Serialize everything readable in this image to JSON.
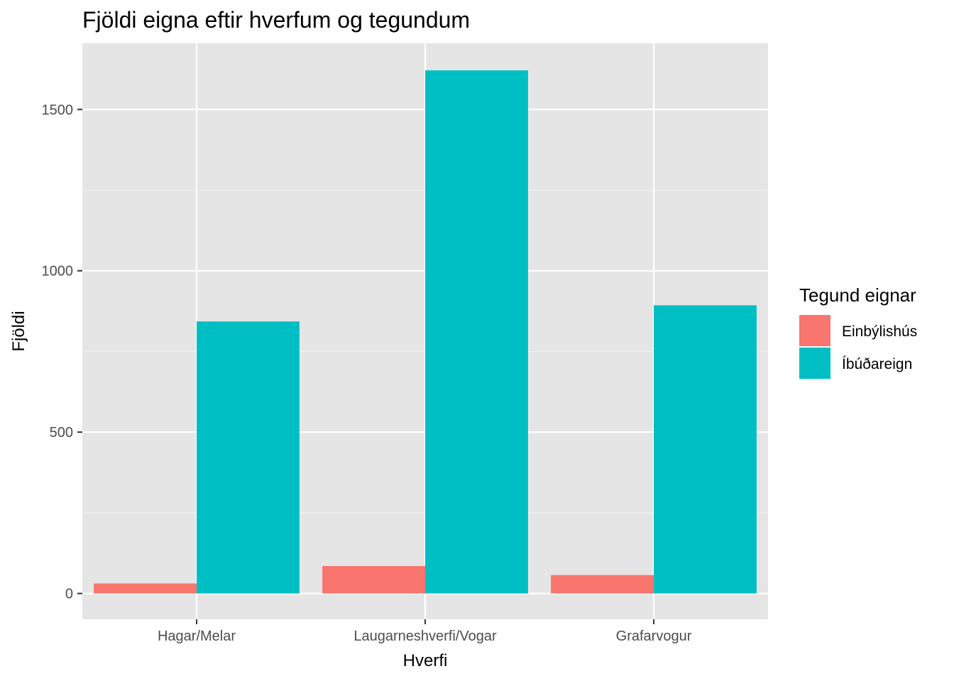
{
  "chart_data": {
    "type": "bar",
    "title": "Fjöldi eigna eftir hverfum og tegundum",
    "xlabel": "Hverfi",
    "ylabel": "Fjöldi",
    "categories": [
      "Hagar/Melar",
      "Laugarneshverfi/Vogar",
      "Grafarvogur"
    ],
    "series": [
      {
        "name": "Einbýlishús",
        "values": [
          31,
          85,
          57
        ],
        "color": "#F8766D"
      },
      {
        "name": "Íbúðareign",
        "values": [
          843,
          1621,
          893
        ],
        "color": "#00BFC4"
      }
    ],
    "ylim": [
      -80,
      1705
    ],
    "yticks": [
      0,
      500,
      1000,
      1500
    ],
    "grid": true,
    "legend": {
      "title": "Tegund eignar",
      "position": "right"
    },
    "panel_background": "#E5E5E5"
  }
}
